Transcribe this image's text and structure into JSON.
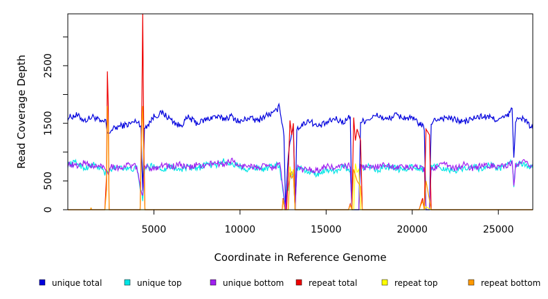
{
  "chart_data": {
    "type": "line",
    "title": "",
    "xlabel": "Coordinate in Reference Genome",
    "ylabel": "Read Coverage Depth",
    "xlim": [
      0,
      27000
    ],
    "ylim": [
      0,
      3400
    ],
    "x_ticks": [
      5000,
      10000,
      15000,
      20000,
      25000
    ],
    "x_tick_labels": [
      "5000",
      "10000",
      "15000",
      "20000",
      "25000"
    ],
    "y_ticks": [
      0,
      500,
      1000,
      1500,
      2000,
      2500,
      3000
    ],
    "y_tick_labels": [
      "0",
      "500",
      "",
      "1500",
      "",
      "2500",
      ""
    ],
    "grid": false,
    "legend_position": "bottom",
    "series": [
      {
        "name": "unique total",
        "color": "#0000dd",
        "points": [
          [
            0,
            1600
          ],
          [
            500,
            1640
          ],
          [
            1000,
            1550
          ],
          [
            1500,
            1620
          ],
          [
            2000,
            1500
          ],
          [
            2200,
            1560
          ],
          [
            2300,
            1300
          ],
          [
            2500,
            1380
          ],
          [
            3000,
            1450
          ],
          [
            3500,
            1480
          ],
          [
            4000,
            1540
          ],
          [
            4250,
            1470
          ],
          [
            4350,
            280
          ],
          [
            4450,
            1420
          ],
          [
            4700,
            1500
          ],
          [
            5000,
            1620
          ],
          [
            5500,
            1680
          ],
          [
            6000,
            1560
          ],
          [
            6500,
            1450
          ],
          [
            7000,
            1600
          ],
          [
            7500,
            1500
          ],
          [
            8000,
            1560
          ],
          [
            8500,
            1620
          ],
          [
            9000,
            1580
          ],
          [
            9500,
            1620
          ],
          [
            10000,
            1520
          ],
          [
            10500,
            1600
          ],
          [
            11000,
            1540
          ],
          [
            11500,
            1640
          ],
          [
            12000,
            1680
          ],
          [
            12300,
            1800
          ],
          [
            12550,
            1300
          ],
          [
            12650,
            50
          ],
          [
            12750,
            700
          ],
          [
            12900,
            1200
          ],
          [
            13100,
            1450
          ],
          [
            13200,
            0
          ],
          [
            13300,
            1420
          ],
          [
            13500,
            1440
          ],
          [
            14000,
            1560
          ],
          [
            14500,
            1440
          ],
          [
            15000,
            1500
          ],
          [
            15500,
            1580
          ],
          [
            16000,
            1520
          ],
          [
            16400,
            1620
          ],
          [
            16500,
            0
          ],
          [
            16900,
            0
          ],
          [
            17000,
            1520
          ],
          [
            17500,
            1580
          ],
          [
            18000,
            1640
          ],
          [
            18500,
            1560
          ],
          [
            19000,
            1640
          ],
          [
            19500,
            1600
          ],
          [
            20000,
            1580
          ],
          [
            20500,
            1480
          ],
          [
            20700,
            1400
          ],
          [
            20800,
            0
          ],
          [
            21000,
            0
          ],
          [
            21100,
            1520
          ],
          [
            21500,
            1580
          ],
          [
            22000,
            1600
          ],
          [
            22500,
            1560
          ],
          [
            23000,
            1520
          ],
          [
            23500,
            1580
          ],
          [
            24000,
            1620
          ],
          [
            24500,
            1600
          ],
          [
            25000,
            1560
          ],
          [
            25500,
            1620
          ],
          [
            25800,
            1740
          ],
          [
            25900,
            900
          ],
          [
            26000,
            1560
          ],
          [
            26500,
            1580
          ],
          [
            27000,
            1400
          ]
        ]
      },
      {
        "name": "unique top",
        "color": "#00e5e5",
        "points": [
          [
            0,
            780
          ],
          [
            500,
            820
          ],
          [
            1000,
            720
          ],
          [
            1500,
            780
          ],
          [
            2000,
            700
          ],
          [
            2200,
            620
          ],
          [
            2300,
            650
          ],
          [
            2500,
            700
          ],
          [
            3000,
            760
          ],
          [
            3500,
            700
          ],
          [
            4000,
            720
          ],
          [
            4350,
            150
          ],
          [
            4450,
            720
          ],
          [
            5000,
            770
          ],
          [
            5500,
            700
          ],
          [
            6000,
            760
          ],
          [
            6500,
            690
          ],
          [
            7000,
            740
          ],
          [
            7500,
            700
          ],
          [
            8000,
            800
          ],
          [
            8500,
            760
          ],
          [
            9000,
            840
          ],
          [
            9500,
            800
          ],
          [
            10000,
            760
          ],
          [
            10500,
            700
          ],
          [
            11000,
            740
          ],
          [
            11500,
            700
          ],
          [
            12000,
            780
          ],
          [
            12300,
            760
          ],
          [
            12650,
            0
          ],
          [
            12750,
            300
          ],
          [
            12900,
            560
          ],
          [
            13100,
            640
          ],
          [
            13200,
            0
          ],
          [
            13300,
            700
          ],
          [
            13500,
            740
          ],
          [
            14000,
            640
          ],
          [
            14500,
            620
          ],
          [
            15000,
            700
          ],
          [
            15500,
            680
          ],
          [
            16000,
            740
          ],
          [
            16400,
            700
          ],
          [
            16500,
            0
          ],
          [
            16900,
            0
          ],
          [
            17000,
            720
          ],
          [
            17500,
            760
          ],
          [
            18000,
            700
          ],
          [
            18500,
            740
          ],
          [
            19000,
            720
          ],
          [
            19500,
            680
          ],
          [
            20000,
            760
          ],
          [
            20500,
            720
          ],
          [
            20700,
            680
          ],
          [
            20800,
            0
          ],
          [
            21000,
            0
          ],
          [
            21100,
            740
          ],
          [
            21500,
            760
          ],
          [
            22000,
            700
          ],
          [
            22500,
            680
          ],
          [
            23000,
            720
          ],
          [
            23500,
            760
          ],
          [
            24000,
            700
          ],
          [
            24500,
            780
          ],
          [
            25000,
            720
          ],
          [
            25500,
            760
          ],
          [
            25800,
            840
          ],
          [
            25900,
            420
          ],
          [
            26000,
            780
          ],
          [
            26500,
            800
          ],
          [
            27000,
            720
          ]
        ]
      },
      {
        "name": "unique bottom",
        "color": "#a020f0",
        "points": [
          [
            0,
            800
          ],
          [
            500,
            760
          ],
          [
            1000,
            820
          ],
          [
            1500,
            740
          ],
          [
            2000,
            760
          ],
          [
            2200,
            700
          ],
          [
            2300,
            640
          ],
          [
            2500,
            760
          ],
          [
            3000,
            720
          ],
          [
            3500,
            780
          ],
          [
            4000,
            740
          ],
          [
            4350,
            200
          ],
          [
            4450,
            740
          ],
          [
            5000,
            720
          ],
          [
            5500,
            780
          ],
          [
            6000,
            740
          ],
          [
            6500,
            780
          ],
          [
            7000,
            720
          ],
          [
            7500,
            780
          ],
          [
            8000,
            760
          ],
          [
            8500,
            820
          ],
          [
            9000,
            780
          ],
          [
            9500,
            860
          ],
          [
            10000,
            740
          ],
          [
            10500,
            780
          ],
          [
            11000,
            720
          ],
          [
            11500,
            760
          ],
          [
            12000,
            720
          ],
          [
            12300,
            820
          ],
          [
            12650,
            0
          ],
          [
            12750,
            320
          ],
          [
            12900,
            600
          ],
          [
            13100,
            700
          ],
          [
            13200,
            0
          ],
          [
            13300,
            740
          ],
          [
            13500,
            700
          ],
          [
            14000,
            700
          ],
          [
            14500,
            680
          ],
          [
            15000,
            760
          ],
          [
            15500,
            720
          ],
          [
            16000,
            760
          ],
          [
            16400,
            760
          ],
          [
            16500,
            0
          ],
          [
            16900,
            0
          ],
          [
            17000,
            760
          ],
          [
            17500,
            720
          ],
          [
            18000,
            760
          ],
          [
            18500,
            780
          ],
          [
            19000,
            740
          ],
          [
            19500,
            740
          ],
          [
            20000,
            720
          ],
          [
            20500,
            760
          ],
          [
            20700,
            700
          ],
          [
            20800,
            0
          ],
          [
            21000,
            0
          ],
          [
            21100,
            720
          ],
          [
            21500,
            760
          ],
          [
            22000,
            780
          ],
          [
            22500,
            720
          ],
          [
            23000,
            780
          ],
          [
            23500,
            720
          ],
          [
            24000,
            760
          ],
          [
            24500,
            760
          ],
          [
            25000,
            760
          ],
          [
            25500,
            740
          ],
          [
            25800,
            820
          ],
          [
            25900,
            440
          ],
          [
            26000,
            760
          ],
          [
            26500,
            820
          ],
          [
            27000,
            760
          ]
        ]
      },
      {
        "name": "repeat total",
        "color": "#ee0000",
        "points": [
          [
            0,
            0
          ],
          [
            2150,
            0
          ],
          [
            2250,
            600
          ],
          [
            2300,
            2400
          ],
          [
            2350,
            1800
          ],
          [
            2400,
            0
          ],
          [
            4200,
            0
          ],
          [
            4300,
            1800
          ],
          [
            4350,
            3400
          ],
          [
            4420,
            1000
          ],
          [
            4480,
            0
          ],
          [
            12450,
            0
          ],
          [
            12500,
            200
          ],
          [
            12600,
            0
          ],
          [
            12700,
            0
          ],
          [
            12800,
            600
          ],
          [
            12900,
            1550
          ],
          [
            13000,
            1300
          ],
          [
            13100,
            1500
          ],
          [
            13200,
            0
          ],
          [
            16300,
            0
          ],
          [
            16400,
            100
          ],
          [
            16500,
            0
          ],
          [
            16600,
            1600
          ],
          [
            16700,
            1200
          ],
          [
            16800,
            1400
          ],
          [
            16900,
            1300
          ],
          [
            17000,
            1200
          ],
          [
            17100,
            0
          ],
          [
            20400,
            0
          ],
          [
            20500,
            100
          ],
          [
            20600,
            200
          ],
          [
            20700,
            0
          ],
          [
            20800,
            1400
          ],
          [
            20900,
            1350
          ],
          [
            21000,
            1300
          ],
          [
            21100,
            0
          ],
          [
            27000,
            0
          ]
        ]
      },
      {
        "name": "repeat top",
        "color": "#ffff00",
        "points": [
          [
            0,
            0
          ],
          [
            12800,
            0
          ],
          [
            12900,
            750
          ],
          [
            13000,
            600
          ],
          [
            13100,
            700
          ],
          [
            13200,
            0
          ],
          [
            16600,
            0
          ],
          [
            16700,
            800
          ],
          [
            16800,
            650
          ],
          [
            16900,
            700
          ],
          [
            17000,
            0
          ],
          [
            20700,
            0
          ],
          [
            20800,
            50
          ],
          [
            21100,
            0
          ],
          [
            27000,
            0
          ]
        ]
      },
      {
        "name": "repeat bottom",
        "color": "#ff9900",
        "points": [
          [
            0,
            0
          ],
          [
            1300,
            0
          ],
          [
            1350,
            30
          ],
          [
            1400,
            0
          ],
          [
            2150,
            0
          ],
          [
            2250,
            350
          ],
          [
            2300,
            1800
          ],
          [
            2350,
            1400
          ],
          [
            2400,
            0
          ],
          [
            4200,
            0
          ],
          [
            4300,
            1500
          ],
          [
            4350,
            1800
          ],
          [
            4420,
            700
          ],
          [
            4480,
            0
          ],
          [
            12450,
            0
          ],
          [
            12500,
            180
          ],
          [
            12600,
            0
          ],
          [
            12800,
            0
          ],
          [
            12900,
            650
          ],
          [
            13000,
            550
          ],
          [
            13100,
            600
          ],
          [
            13200,
            0
          ],
          [
            16300,
            0
          ],
          [
            16400,
            80
          ],
          [
            16500,
            0
          ],
          [
            16600,
            700
          ],
          [
            16800,
            500
          ],
          [
            17000,
            400
          ],
          [
            17100,
            0
          ],
          [
            20400,
            0
          ],
          [
            20500,
            80
          ],
          [
            20600,
            150
          ],
          [
            20700,
            0
          ],
          [
            20800,
            500
          ],
          [
            21100,
            0
          ],
          [
            27000,
            0
          ]
        ]
      }
    ]
  }
}
